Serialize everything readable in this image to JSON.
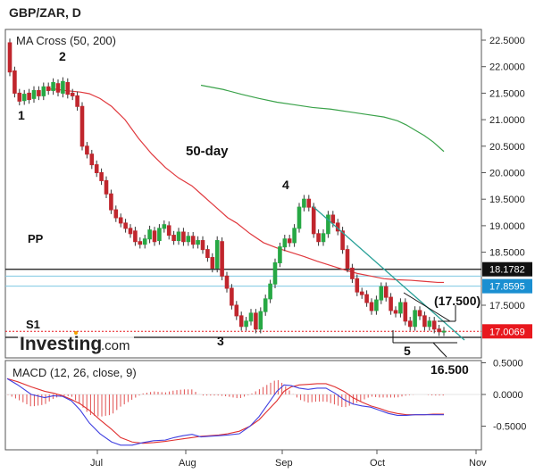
{
  "header": {
    "symbol_title": "GBP/ZAR, D"
  },
  "colors": {
    "up": "#27a844",
    "down": "#c0262d",
    "ma50": "#e0393e",
    "ma200": "#3aa24a",
    "trendline": "#2aa198",
    "macd_line": "#4040e0",
    "signal_line": "#e03030",
    "histogram": "#e05050",
    "price_tag": "#e8181e",
    "pivot_tag": "#1a8fd1"
  },
  "chart_data": [
    {
      "type": "candlestick",
      "title": "MA Cross (50, 200)",
      "x_tick_labels": [
        "Jul",
        "Aug",
        "Sep",
        "Oct",
        "Nov"
      ],
      "y_tick_labels": [
        "22.5000",
        "22.0000",
        "21.5000",
        "21.0000",
        "20.5000",
        "20.0000",
        "19.5000",
        "19.0000",
        "18.5000",
        "17.5000"
      ],
      "ylim": [
        16.85,
        22.75
      ],
      "grid": false,
      "candles": [
        [
          22.45,
          21.9
        ],
        [
          21.92,
          21.5
        ],
        [
          21.5,
          21.35
        ],
        [
          21.36,
          21.48
        ],
        [
          21.5,
          21.38
        ],
        [
          21.4,
          21.55
        ],
        [
          21.55,
          21.45
        ],
        [
          21.45,
          21.62
        ],
        [
          21.62,
          21.55
        ],
        [
          21.55,
          21.7
        ],
        [
          21.68,
          21.52
        ],
        [
          21.5,
          21.72
        ],
        [
          21.7,
          21.48
        ],
        [
          21.5,
          21.45
        ],
        [
          21.45,
          21.25
        ],
        [
          21.25,
          20.5
        ],
        [
          20.5,
          20.35
        ],
        [
          20.35,
          20.15
        ],
        [
          20.15,
          20.0
        ],
        [
          20.0,
          19.85
        ],
        [
          19.85,
          19.6
        ],
        [
          19.6,
          19.3
        ],
        [
          19.3,
          19.15
        ],
        [
          19.15,
          19.05
        ],
        [
          19.05,
          18.95
        ],
        [
          18.95,
          18.85
        ],
        [
          18.9,
          18.7
        ],
        [
          18.7,
          18.65
        ],
        [
          18.65,
          18.75
        ],
        [
          18.75,
          18.92
        ],
        [
          18.9,
          18.7
        ],
        [
          18.72,
          18.95
        ],
        [
          18.95,
          19.02
        ],
        [
          19.0,
          18.82
        ],
        [
          18.82,
          18.72
        ],
        [
          18.72,
          18.88
        ],
        [
          18.88,
          18.7
        ],
        [
          18.7,
          18.8
        ],
        [
          18.8,
          18.65
        ],
        [
          18.65,
          18.72
        ],
        [
          18.72,
          18.55
        ],
        [
          18.55,
          18.4
        ],
        [
          18.4,
          18.2
        ],
        [
          18.2,
          18.72
        ],
        [
          18.7,
          18.05
        ],
        [
          18.05,
          17.82
        ],
        [
          17.82,
          17.5
        ],
        [
          17.5,
          17.3
        ],
        [
          17.3,
          17.1
        ],
        [
          17.1,
          17.2
        ],
        [
          17.2,
          17.35
        ],
        [
          17.35,
          17.05
        ],
        [
          17.05,
          17.38
        ],
        [
          17.38,
          17.62
        ],
        [
          17.62,
          17.9
        ],
        [
          17.9,
          18.3
        ],
        [
          18.3,
          18.6
        ],
        [
          18.6,
          18.75
        ],
        [
          18.75,
          18.68
        ],
        [
          18.68,
          18.95
        ],
        [
          18.95,
          19.35
        ],
        [
          19.35,
          19.5
        ],
        [
          19.5,
          19.35
        ],
        [
          19.35,
          18.85
        ],
        [
          18.85,
          18.7
        ],
        [
          18.7,
          18.85
        ],
        [
          18.85,
          19.2
        ],
        [
          19.2,
          19.05
        ],
        [
          19.05,
          18.9
        ],
        [
          18.9,
          18.55
        ],
        [
          18.55,
          18.2
        ],
        [
          18.2,
          18.0
        ],
        [
          18.0,
          17.75
        ],
        [
          17.75,
          17.7
        ],
        [
          17.7,
          17.55
        ],
        [
          17.55,
          17.4
        ],
        [
          17.4,
          17.6
        ],
        [
          17.6,
          17.85
        ],
        [
          17.85,
          17.65
        ],
        [
          17.65,
          17.4
        ],
        [
          17.4,
          17.35
        ],
        [
          17.35,
          17.55
        ],
        [
          17.55,
          17.2
        ],
        [
          17.2,
          17.1
        ],
        [
          17.1,
          17.4
        ],
        [
          17.4,
          17.3
        ],
        [
          17.3,
          17.1
        ],
        [
          17.1,
          17.2
        ],
        [
          17.2,
          17.05
        ],
        [
          17.05,
          17.0
        ],
        [
          17.0,
          17.01
        ]
      ],
      "ma50": {
        "name": "50-day",
        "values": [
          [
            52,
            21.57
          ],
          [
            60,
            21.58
          ],
          [
            73,
            21.55
          ],
          [
            90,
            21.52
          ],
          [
            100,
            21.49
          ],
          [
            112,
            21.4
          ],
          [
            125,
            21.25
          ],
          [
            140,
            21.0
          ],
          [
            155,
            20.65
          ],
          [
            170,
            20.35
          ],
          [
            185,
            20.1
          ],
          [
            200,
            19.9
          ],
          [
            215,
            19.75
          ],
          [
            225,
            19.6
          ],
          [
            235,
            19.45
          ],
          [
            245,
            19.3
          ],
          [
            255,
            19.15
          ],
          [
            265,
            19.05
          ],
          [
            280,
            18.85
          ],
          [
            295,
            18.68
          ],
          [
            310,
            18.58
          ],
          [
            325,
            18.5
          ],
          [
            340,
            18.42
          ],
          [
            355,
            18.33
          ],
          [
            370,
            18.25
          ],
          [
            385,
            18.17
          ],
          [
            400,
            18.1
          ],
          [
            415,
            18.05
          ],
          [
            430,
            18.0
          ],
          [
            445,
            17.98
          ],
          [
            460,
            17.97
          ],
          [
            475,
            17.95
          ],
          [
            490,
            17.93
          ],
          [
            497,
            17.93
          ]
        ]
      },
      "ma200": {
        "name": "",
        "values": [
          [
            225,
            21.65
          ],
          [
            250,
            21.57
          ],
          [
            270,
            21.48
          ],
          [
            290,
            21.4
          ],
          [
            310,
            21.33
          ],
          [
            330,
            21.28
          ],
          [
            350,
            21.23
          ],
          [
            370,
            21.2
          ],
          [
            390,
            21.15
          ],
          [
            410,
            21.1
          ],
          [
            430,
            21.05
          ],
          [
            445,
            20.98
          ],
          [
            455,
            20.9
          ],
          [
            465,
            20.8
          ],
          [
            475,
            20.7
          ],
          [
            485,
            20.58
          ],
          [
            497,
            20.4
          ]
        ]
      },
      "horizontal_levels": [
        {
          "name": "PP",
          "value": 18.1782,
          "label": "18.1782"
        },
        {
          "name": "",
          "value": 17.8595,
          "label": "17.8595"
        },
        {
          "name": "",
          "value": 18.05,
          "label": ""
        },
        {
          "name": "S1",
          "value": 16.86,
          "label": ""
        }
      ],
      "current_price": {
        "value": 17.0069,
        "label": "17.0069"
      },
      "annotations": [
        "1",
        "2",
        "3",
        "4",
        "5",
        "50-day",
        "PP",
        "S1",
        "(17.500)",
        "16.500"
      ]
    },
    {
      "type": "line",
      "title": "MACD (12, 26, close, 9)",
      "y_tick_labels": [
        "0.5000",
        "0.0000",
        "-0.5000"
      ],
      "ylim": [
        -0.75,
        0.6
      ],
      "macd": [
        [
          8,
          0.25
        ],
        [
          20,
          0.15
        ],
        [
          35,
          0.0
        ],
        [
          50,
          -0.05
        ],
        [
          60,
          -0.02
        ],
        [
          70,
          -0.03
        ],
        [
          80,
          -0.1
        ],
        [
          90,
          -0.25
        ],
        [
          100,
          -0.45
        ],
        [
          112,
          -0.62
        ],
        [
          125,
          -0.75
        ],
        [
          135,
          -0.8
        ],
        [
          148,
          -0.8
        ],
        [
          160,
          -0.76
        ],
        [
          172,
          -0.73
        ],
        [
          185,
          -0.72
        ],
        [
          195,
          -0.68
        ],
        [
          205,
          -0.65
        ],
        [
          215,
          -0.63
        ],
        [
          225,
          -0.67
        ],
        [
          235,
          -0.66
        ],
        [
          245,
          -0.65
        ],
        [
          255,
          -0.64
        ],
        [
          268,
          -0.62
        ],
        [
          280,
          -0.5
        ],
        [
          290,
          -0.35
        ],
        [
          300,
          -0.15
        ],
        [
          310,
          0.05
        ],
        [
          318,
          0.15
        ],
        [
          326,
          0.14
        ],
        [
          335,
          0.1
        ],
        [
          345,
          0.08
        ],
        [
          355,
          0.1
        ],
        [
          365,
          0.1
        ],
        [
          375,
          0.02
        ],
        [
          385,
          -0.08
        ],
        [
          395,
          -0.15
        ],
        [
          405,
          -0.18
        ],
        [
          415,
          -0.2
        ],
        [
          425,
          -0.25
        ],
        [
          435,
          -0.3
        ],
        [
          445,
          -0.33
        ],
        [
          455,
          -0.33
        ],
        [
          465,
          -0.32
        ],
        [
          475,
          -0.32
        ],
        [
          485,
          -0.32
        ],
        [
          497,
          -0.32
        ]
      ],
      "signal": [
        [
          8,
          0.25
        ],
        [
          20,
          0.2
        ],
        [
          35,
          0.12
        ],
        [
          50,
          0.05
        ],
        [
          60,
          0.02
        ],
        [
          70,
          -0.02
        ],
        [
          80,
          -0.08
        ],
        [
          90,
          -0.15
        ],
        [
          100,
          -0.25
        ],
        [
          112,
          -0.4
        ],
        [
          125,
          -0.55
        ],
        [
          135,
          -0.68
        ],
        [
          148,
          -0.75
        ],
        [
          160,
          -0.77
        ],
        [
          172,
          -0.76
        ],
        [
          185,
          -0.74
        ],
        [
          195,
          -0.72
        ],
        [
          205,
          -0.7
        ],
        [
          215,
          -0.68
        ],
        [
          225,
          -0.66
        ],
        [
          235,
          -0.65
        ],
        [
          245,
          -0.64
        ],
        [
          255,
          -0.62
        ],
        [
          268,
          -0.58
        ],
        [
          280,
          -0.5
        ],
        [
          290,
          -0.4
        ],
        [
          300,
          -0.25
        ],
        [
          310,
          -0.1
        ],
        [
          318,
          0.05
        ],
        [
          326,
          0.12
        ],
        [
          335,
          0.15
        ],
        [
          345,
          0.16
        ],
        [
          355,
          0.17
        ],
        [
          365,
          0.17
        ],
        [
          375,
          0.12
        ],
        [
          385,
          0.05
        ],
        [
          395,
          -0.05
        ],
        [
          405,
          -0.12
        ],
        [
          415,
          -0.18
        ],
        [
          425,
          -0.22
        ],
        [
          435,
          -0.27
        ],
        [
          445,
          -0.3
        ],
        [
          455,
          -0.32
        ],
        [
          465,
          -0.32
        ],
        [
          475,
          -0.32
        ],
        [
          485,
          -0.31
        ],
        [
          497,
          -0.31
        ]
      ]
    }
  ],
  "watermark": {
    "brand": "Investing",
    "suffix": ".com"
  }
}
